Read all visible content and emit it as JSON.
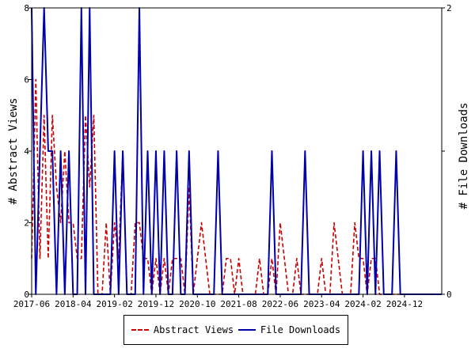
{
  "chart_data": {
    "type": "line",
    "x_tick_labels": [
      "2017-06",
      "2018-04",
      "2019-02",
      "2019-12",
      "2020-10",
      "2021-08",
      "2022-06",
      "2023-04",
      "2024-02",
      "2024-12"
    ],
    "x_range": [
      "2017-06",
      "2025-09"
    ],
    "ylabel_left": "# Abstract Views",
    "ylabel_right": "# File Downloads",
    "ylim_left": [
      0,
      8
    ],
    "ylim_right": [
      0,
      2
    ],
    "yticks_left": [
      "0",
      "2",
      "4",
      "6",
      "8"
    ],
    "yticks_right": [
      "0",
      "1",
      "2"
    ],
    "legend_position": "bottom-center",
    "grid": false,
    "series": [
      {
        "name": "Abstract Views",
        "axis": "left",
        "style": "dashed",
        "color": "#cc0000",
        "x": [
          "2017-06",
          "2017-07",
          "2017-08",
          "2017-09",
          "2017-10",
          "2017-11",
          "2017-12",
          "2018-01",
          "2018-02",
          "2018-03",
          "2018-04",
          "2018-05",
          "2018-06",
          "2018-07",
          "2018-08",
          "2018-09",
          "2018-10",
          "2018-11",
          "2018-12",
          "2019-01",
          "2019-02",
          "2019-03",
          "2019-04",
          "2019-05",
          "2019-06",
          "2019-07",
          "2019-08",
          "2019-09",
          "2019-10",
          "2019-11",
          "2019-12",
          "2020-01",
          "2020-02",
          "2020-03",
          "2020-04",
          "2020-05",
          "2020-06",
          "2020-07",
          "2020-08",
          "2020-09",
          "2020-10",
          "2020-11",
          "2020-12",
          "2021-01",
          "2021-02",
          "2021-03",
          "2021-04",
          "2021-05",
          "2021-06",
          "2021-07",
          "2021-08",
          "2021-09",
          "2021-10",
          "2021-11",
          "2021-12",
          "2022-01",
          "2022-02",
          "2022-03",
          "2022-04",
          "2022-05",
          "2022-06",
          "2022-07",
          "2022-08",
          "2022-09",
          "2022-10",
          "2022-11",
          "2022-12",
          "2023-01",
          "2023-02",
          "2023-03",
          "2023-04",
          "2023-05",
          "2023-06",
          "2023-07",
          "2023-08",
          "2023-09",
          "2023-10",
          "2023-11",
          "2023-12",
          "2024-01",
          "2024-02",
          "2024-03",
          "2024-04",
          "2024-05",
          "2024-06",
          "2024-07",
          "2024-08",
          "2024-09",
          "2024-10",
          "2024-11",
          "2024-12",
          "2025-01",
          "2025-02",
          "2025-03",
          "2025-04",
          "2025-05",
          "2025-06",
          "2025-07",
          "2025-08",
          "2025-09"
        ],
        "values": [
          1,
          6,
          1,
          5,
          1,
          5,
          3,
          2,
          4,
          2,
          2,
          1,
          1,
          5,
          3,
          5,
          0,
          0,
          2,
          0,
          2,
          1,
          4,
          0,
          0,
          2,
          2,
          1,
          1,
          0,
          1,
          0,
          1,
          0,
          1,
          1,
          1,
          0,
          3,
          0,
          1,
          2,
          1,
          0,
          0,
          0,
          0,
          1,
          1,
          0,
          1,
          0,
          0,
          0,
          0,
          1,
          0,
          0,
          1,
          0,
          2,
          1,
          0,
          0,
          1,
          0,
          0,
          0,
          0,
          0,
          1,
          0,
          0,
          2,
          1,
          0,
          0,
          0,
          2,
          1,
          1,
          0,
          1,
          1,
          0,
          0,
          0,
          0,
          0,
          0,
          0,
          0,
          0,
          0,
          0,
          0,
          0,
          0,
          0,
          0
        ]
      },
      {
        "name": "File Downloads",
        "axis": "right",
        "style": "solid",
        "color": "#0000aa",
        "x": [
          "2017-06",
          "2017-07",
          "2017-08",
          "2017-09",
          "2017-10",
          "2017-11",
          "2017-12",
          "2018-01",
          "2018-02",
          "2018-03",
          "2018-04",
          "2018-05",
          "2018-06",
          "2018-07",
          "2018-08",
          "2018-09",
          "2018-10",
          "2018-11",
          "2018-12",
          "2019-01",
          "2019-02",
          "2019-03",
          "2019-04",
          "2019-05",
          "2019-06",
          "2019-07",
          "2019-08",
          "2019-09",
          "2019-10",
          "2019-11",
          "2019-12",
          "2020-01",
          "2020-02",
          "2020-03",
          "2020-04",
          "2020-05",
          "2020-06",
          "2020-07",
          "2020-08",
          "2020-09",
          "2020-10",
          "2020-11",
          "2020-12",
          "2021-01",
          "2021-02",
          "2021-03",
          "2021-04",
          "2021-05",
          "2021-06",
          "2021-07",
          "2021-08",
          "2021-09",
          "2021-10",
          "2021-11",
          "2021-12",
          "2022-01",
          "2022-02",
          "2022-03",
          "2022-04",
          "2022-05",
          "2022-06",
          "2022-07",
          "2022-08",
          "2022-09",
          "2022-10",
          "2022-11",
          "2022-12",
          "2023-01",
          "2023-02",
          "2023-03",
          "2023-04",
          "2023-05",
          "2023-06",
          "2023-07",
          "2023-08",
          "2023-09",
          "2023-10",
          "2023-11",
          "2023-12",
          "2024-01",
          "2024-02",
          "2024-03",
          "2024-04",
          "2024-05",
          "2024-06",
          "2024-07",
          "2024-08",
          "2024-09",
          "2024-10",
          "2024-11",
          "2024-12",
          "2025-01",
          "2025-02",
          "2025-03",
          "2025-04",
          "2025-05",
          "2025-06",
          "2025-07",
          "2025-08",
          "2025-09"
        ],
        "values": [
          2,
          0,
          1,
          2,
          1,
          1,
          0,
          1,
          0,
          1,
          0,
          0,
          2,
          0,
          2,
          0,
          0,
          0,
          0,
          0,
          1,
          0,
          1,
          0,
          0,
          0,
          2,
          0,
          1,
          0,
          1,
          0,
          1,
          0,
          0,
          1,
          0,
          0,
          1,
          0,
          0,
          0,
          0,
          0,
          0,
          1,
          0,
          0,
          0,
          0,
          0,
          0,
          0,
          0,
          0,
          0,
          0,
          0,
          1,
          0,
          0,
          0,
          0,
          0,
          0,
          0,
          1,
          0,
          0,
          0,
          0,
          0,
          0,
          0,
          0,
          0,
          0,
          0,
          0,
          0,
          1,
          0,
          1,
          0,
          1,
          0,
          0,
          0,
          1,
          0,
          0,
          0,
          0,
          0,
          0,
          0,
          0,
          0,
          0,
          0
        ]
      }
    ]
  }
}
